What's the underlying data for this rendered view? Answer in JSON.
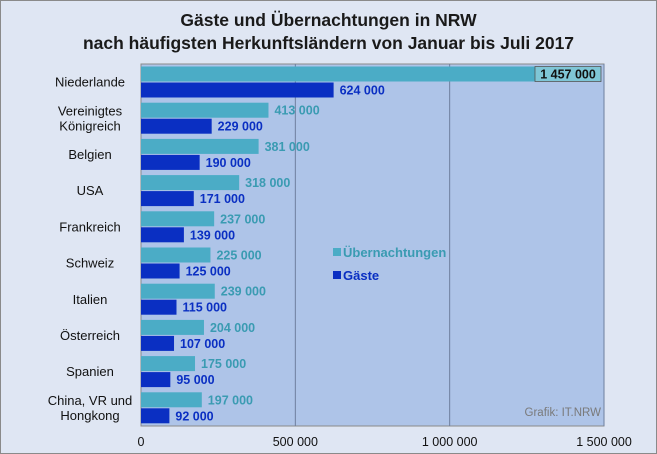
{
  "chart_data": {
    "type": "bar",
    "orientation": "horizontal",
    "title": "Gäste und Übernachtungen in NRW",
    "subtitle": "nach häufigsten Herkunftsländern von Januar bis Juli 2017",
    "categories": [
      "Niederlande",
      "Vereinigtes\nKönigreich",
      "Belgien",
      "USA",
      "Frankreich",
      "Schweiz",
      "Italien",
      "Österreich",
      "Spanien",
      "China, VR und\nHongkong"
    ],
    "series": [
      {
        "name": "Übernachtungen",
        "color": "#4bacc6",
        "values": [
          1457000,
          413000,
          381000,
          318000,
          237000,
          225000,
          239000,
          204000,
          175000,
          197000
        ],
        "labels": [
          "1 457 000",
          "413 000",
          "381 000",
          "318 000",
          "237 000",
          "225 000",
          "239 000",
          "204 000",
          "175 000",
          "197 000"
        ]
      },
      {
        "name": "Gäste",
        "color": "#0a2fc2",
        "values": [
          624000,
          229000,
          190000,
          171000,
          139000,
          125000,
          115000,
          107000,
          95000,
          92000
        ],
        "labels": [
          "624 000",
          "229 000",
          "190 000",
          "171 000",
          "139 000",
          "125 000",
          "115 000",
          "107 000",
          "95 000",
          "92 000"
        ]
      }
    ],
    "xlim": [
      0,
      1500000
    ],
    "xticks": [
      0,
      500000,
      1000000,
      1500000
    ],
    "xtick_labels": [
      "0",
      "500 000",
      "1 000 000",
      "1 500 000"
    ],
    "grid": true,
    "legend_position": "center-right",
    "annotation": "Grafik: IT.NRW",
    "colors": {
      "plot_background": "#aec4e8",
      "chart_background": "#dfe6f3",
      "gridline": "#6e7f9e",
      "first_label_box": "#7fc6d6"
    }
  }
}
